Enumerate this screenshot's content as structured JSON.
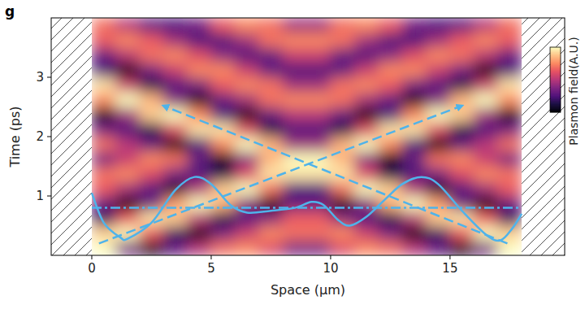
{
  "chart_data": {
    "type": "heatmap",
    "panel_label": "g",
    "xlabel": "Space (μm)",
    "ylabel": "Time (ps)",
    "xlim": [
      -1.7,
      19.8
    ],
    "ylim": [
      0,
      4.0
    ],
    "xticks": [
      0,
      5,
      10,
      15
    ],
    "yticks": [
      1,
      2,
      3
    ],
    "xbins": [
      0,
      1,
      2,
      3,
      4,
      5,
      6,
      7,
      8,
      9,
      10,
      11,
      12,
      13,
      14,
      15,
      16,
      17,
      18
    ],
    "ybins": [
      0,
      0.25,
      0.5,
      0.75,
      1.0,
      1.25,
      1.5,
      1.75,
      2.0,
      2.25,
      2.5,
      2.75,
      3.0,
      3.25,
      3.5,
      3.75,
      4.0
    ],
    "cells": [
      [
        1.0,
        -0.3,
        -0.9,
        -0.4,
        0.0,
        0.4,
        0.5,
        0.2,
        -0.3,
        -0.3,
        0.2,
        0.5,
        0.4,
        0.0,
        -0.4,
        -0.9,
        -0.3,
        1.0
      ],
      [
        0.8,
        1.0,
        0.3,
        -0.6,
        -1.0,
        -0.3,
        0.1,
        0.5,
        0.4,
        0.4,
        0.5,
        0.1,
        -0.3,
        -1.0,
        -0.6,
        0.3,
        1.0,
        0.8
      ],
      [
        -0.6,
        0.3,
        0.9,
        0.8,
        0.0,
        -0.7,
        -0.5,
        -0.2,
        0.3,
        0.3,
        -0.2,
        -0.5,
        -0.7,
        0.0,
        0.8,
        0.9,
        0.3,
        -0.6
      ],
      [
        -0.4,
        -1.0,
        -0.3,
        0.6,
        1.0,
        0.7,
        -0.2,
        -0.9,
        -0.4,
        -0.4,
        -0.9,
        -0.2,
        0.7,
        1.0,
        0.6,
        -0.3,
        -1.0,
        -0.4
      ],
      [
        0.3,
        -0.1,
        -0.5,
        -0.8,
        0.0,
        0.8,
        1.0,
        0.4,
        -0.5,
        -0.5,
        0.4,
        1.0,
        0.8,
        0.0,
        -0.8,
        -0.5,
        -0.1,
        0.3
      ],
      [
        0.4,
        0.5,
        0.2,
        -0.3,
        -0.5,
        -0.7,
        0.2,
        0.9,
        0.9,
        0.9,
        0.9,
        0.2,
        -0.7,
        -0.5,
        -0.3,
        0.2,
        0.5,
        0.4
      ],
      [
        -0.3,
        0.1,
        0.5,
        0.4,
        -0.4,
        -0.9,
        -0.2,
        0.7,
        1.0,
        1.0,
        0.7,
        -0.2,
        -0.9,
        -0.4,
        0.4,
        0.5,
        0.1,
        -0.3
      ],
      [
        0.4,
        0.0,
        -0.4,
        -1.0,
        -0.5,
        0.5,
        1.0,
        0.7,
        -0.1,
        -0.1,
        0.7,
        1.0,
        0.5,
        -0.5,
        -1.0,
        -0.4,
        0.0,
        0.4
      ],
      [
        -0.3,
        -0.5,
        -0.7,
        0.2,
        0.9,
        0.9,
        0.2,
        -0.7,
        -0.5,
        -0.5,
        -0.7,
        0.2,
        0.9,
        0.9,
        0.2,
        -0.7,
        -0.5,
        -0.3
      ],
      [
        -0.9,
        -0.1,
        0.8,
        1.0,
        0.5,
        -0.5,
        -1.0,
        -0.4,
        0.0,
        0.0,
        -0.4,
        -1.0,
        -0.5,
        0.5,
        1.0,
        0.8,
        -0.1,
        -0.9
      ],
      [
        0.5,
        1.0,
        0.7,
        -0.2,
        -0.9,
        -0.4,
        -0.1,
        0.4,
        0.5,
        0.5,
        0.4,
        -0.1,
        -0.4,
        -0.9,
        -0.2,
        0.7,
        1.0,
        0.5
      ],
      [
        0.9,
        0.1,
        -0.7,
        -0.5,
        -0.3,
        0.3,
        0.5,
        0.4,
        -0.1,
        -0.1,
        0.4,
        0.5,
        0.3,
        -0.3,
        -0.5,
        -0.7,
        0.1,
        0.9
      ],
      [
        -0.5,
        -1.0,
        -0.3,
        0.1,
        0.5,
        0.5,
        0.1,
        -0.4,
        -0.5,
        -0.5,
        -0.4,
        0.1,
        0.5,
        0.5,
        0.1,
        -0.3,
        -1.0,
        -0.5
      ],
      [
        -0.4,
        0.0,
        0.4,
        0.5,
        0.2,
        -0.2,
        -0.5,
        -0.4,
        0.1,
        0.1,
        -0.4,
        -0.5,
        -0.2,
        0.2,
        0.5,
        0.4,
        0.0,
        -0.4
      ],
      [
        0.3,
        0.5,
        0.3,
        -0.1,
        -0.5,
        -0.5,
        -0.1,
        0.4,
        0.5,
        0.5,
        0.4,
        -0.1,
        -0.5,
        -0.5,
        -0.1,
        0.3,
        0.5,
        0.3
      ],
      [
        0.4,
        0.0,
        -0.4,
        -0.5,
        -0.3,
        0.3,
        0.5,
        0.4,
        -0.1,
        -0.1,
        0.4,
        0.5,
        0.3,
        -0.3,
        -0.5,
        -0.4,
        0.0,
        0.4
      ]
    ],
    "colorbar": {
      "label": "Plasmon field(A.U.)",
      "range": [
        -1,
        1
      ]
    },
    "series": [
      {
        "type": "line",
        "line_style": "solid",
        "color": "#4fb3ea",
        "x": [
          0,
          0.5,
          1.2,
          1.5,
          2.5,
          3.5,
          4.3,
          5.0,
          5.8,
          6.5,
          7.5,
          8.5,
          9.2,
          9.7,
          10.3,
          10.8,
          11.5,
          12.3,
          13.0,
          13.8,
          14.5,
          15.5,
          16.5,
          17.1,
          17.6,
          18.0
        ],
        "values": [
          1.05,
          0.55,
          0.3,
          0.28,
          0.55,
          1.1,
          1.32,
          1.2,
          0.85,
          0.72,
          0.75,
          0.8,
          0.9,
          0.85,
          0.6,
          0.5,
          0.65,
          0.95,
          1.2,
          1.32,
          1.2,
          0.75,
          0.35,
          0.25,
          0.45,
          0.7
        ]
      },
      {
        "type": "line",
        "line_style": "dashdot",
        "color": "#4fb3ea",
        "x": [
          0,
          18
        ],
        "values": [
          0.8,
          0.8
        ]
      },
      {
        "type": "line",
        "line_style": "dashed",
        "marker": "arrow",
        "color": "#4fb3ea",
        "x": [
          0.3,
          15.5
        ],
        "values": [
          0.2,
          2.52
        ]
      },
      {
        "type": "line",
        "line_style": "dashed",
        "marker": "arrow",
        "color": "#4fb3ea",
        "x": [
          17.4,
          3.0
        ],
        "values": [
          0.2,
          2.52
        ]
      }
    ]
  }
}
